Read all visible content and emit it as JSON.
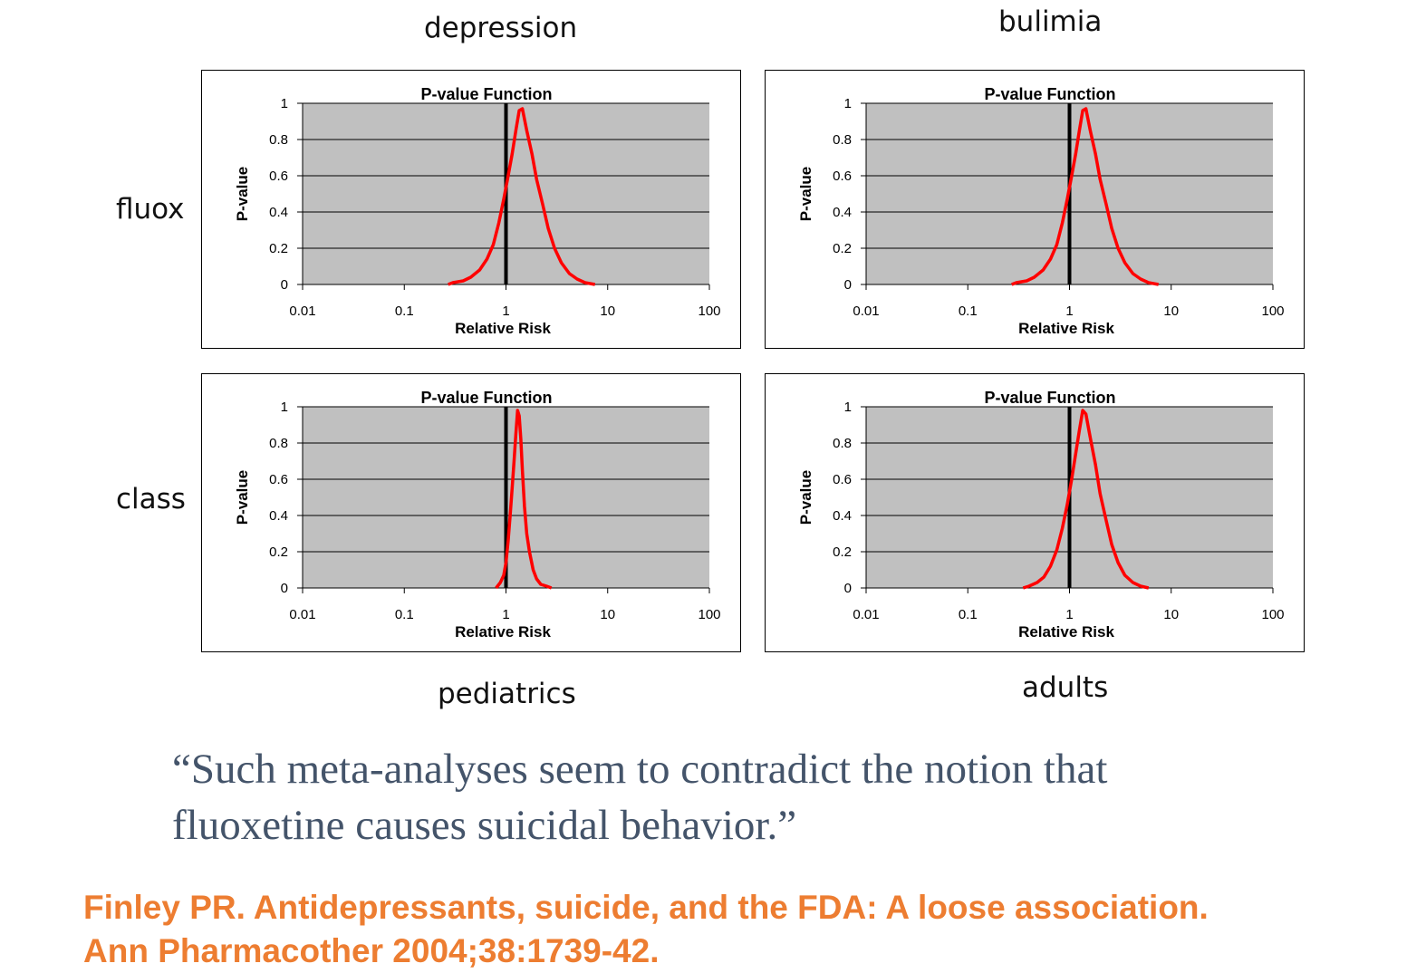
{
  "column_labels": [
    "depression",
    "bulimia"
  ],
  "row_labels": [
    "fluox",
    "class"
  ],
  "bottom_labels": [
    "pediatrics",
    "adults"
  ],
  "quote": "“Such meta-analyses seem to contradict the notion that fluoxetine causes suicidal behavior.”",
  "citation": {
    "line1": "Finley PR.  Antidepressants, suicide, and the FDA: A loose association.",
    "line2": "Ann Pharmacother 2004;38:1739-42."
  },
  "colors": {
    "plot_area": "#C0C0C0",
    "curve": "#FF0000",
    "reference_line": "#000000",
    "quote": "#44546A",
    "citation": "#ED7D31"
  },
  "chart_data": [
    {
      "type": "line",
      "title": "P-value Function",
      "xlabel": "Relative Risk",
      "ylabel": "P-value",
      "x_scale": "log",
      "xlim": [
        0.01,
        100
      ],
      "ylim": [
        0,
        1
      ],
      "x_ticks": [
        "0.01",
        "0.1",
        "1",
        "10",
        "100"
      ],
      "y_ticks": [
        "0",
        "0.2",
        "0.4",
        "0.6",
        "0.8",
        "1"
      ],
      "grid": true,
      "reference_line_x": 1,
      "series": [
        {
          "x": [
            0.27,
            0.3,
            0.38,
            0.45,
            0.55,
            0.65,
            0.75,
            0.85,
            0.95,
            1.05,
            1.15,
            1.25,
            1.35,
            1.45,
            1.6,
            1.8,
            2.0,
            2.3,
            2.6,
            3.0,
            3.5,
            4.2,
            5.0,
            6.0,
            7.5
          ],
          "y": [
            0.0,
            0.01,
            0.02,
            0.04,
            0.08,
            0.14,
            0.22,
            0.34,
            0.47,
            0.6,
            0.72,
            0.85,
            0.96,
            0.97,
            0.85,
            0.72,
            0.58,
            0.44,
            0.31,
            0.2,
            0.12,
            0.06,
            0.03,
            0.01,
            0.0
          ]
        }
      ]
    },
    {
      "type": "line",
      "title": "P-value Function",
      "xlabel": "Relative Risk",
      "ylabel": "P-value",
      "x_scale": "log",
      "xlim": [
        0.01,
        100
      ],
      "ylim": [
        0,
        1
      ],
      "x_ticks": [
        "0.01",
        "0.1",
        "1",
        "10",
        "100"
      ],
      "y_ticks": [
        "0",
        "0.2",
        "0.4",
        "0.6",
        "0.8",
        "1"
      ],
      "grid": true,
      "reference_line_x": 1,
      "series": [
        {
          "x": [
            0.27,
            0.3,
            0.38,
            0.45,
            0.55,
            0.65,
            0.75,
            0.85,
            0.95,
            1.05,
            1.15,
            1.25,
            1.35,
            1.45,
            1.6,
            1.8,
            2.0,
            2.3,
            2.6,
            3.0,
            3.5,
            4.2,
            5.0,
            6.0,
            7.5
          ],
          "y": [
            0.0,
            0.01,
            0.02,
            0.04,
            0.08,
            0.14,
            0.22,
            0.34,
            0.47,
            0.6,
            0.72,
            0.85,
            0.96,
            0.97,
            0.85,
            0.72,
            0.58,
            0.44,
            0.31,
            0.2,
            0.12,
            0.06,
            0.03,
            0.01,
            0.0
          ]
        }
      ]
    },
    {
      "type": "line",
      "title": "P-value Function",
      "xlabel": "Relative Risk",
      "ylabel": "P-value",
      "x_scale": "log",
      "xlim": [
        0.01,
        100
      ],
      "ylim": [
        0,
        1
      ],
      "x_ticks": [
        "0.01",
        "0.1",
        "1",
        "10",
        "100"
      ],
      "y_ticks": [
        "0",
        "0.2",
        "0.4",
        "0.6",
        "0.8",
        "1"
      ],
      "grid": true,
      "reference_line_x": 1,
      "series": [
        {
          "x": [
            0.8,
            0.88,
            0.95,
            1.0,
            1.05,
            1.1,
            1.15,
            1.2,
            1.25,
            1.3,
            1.35,
            1.4,
            1.45,
            1.52,
            1.6,
            1.7,
            1.85,
            2.0,
            2.2,
            2.5,
            2.8
          ],
          "y": [
            0.0,
            0.03,
            0.07,
            0.14,
            0.26,
            0.4,
            0.55,
            0.7,
            0.85,
            0.98,
            0.95,
            0.82,
            0.65,
            0.45,
            0.3,
            0.2,
            0.1,
            0.05,
            0.02,
            0.01,
            0.0
          ]
        }
      ]
    },
    {
      "type": "line",
      "title": "P-value Function",
      "xlabel": "Relative Risk",
      "ylabel": "P-value",
      "x_scale": "log",
      "xlim": [
        0.01,
        100
      ],
      "ylim": [
        0,
        1
      ],
      "x_ticks": [
        "0.01",
        "0.1",
        "1",
        "10",
        "100"
      ],
      "y_ticks": [
        "0",
        "0.2",
        "0.4",
        "0.6",
        "0.8",
        "1"
      ],
      "grid": true,
      "reference_line_x": 1,
      "series": [
        {
          "x": [
            0.35,
            0.4,
            0.48,
            0.56,
            0.65,
            0.75,
            0.85,
            0.95,
            1.05,
            1.15,
            1.25,
            1.35,
            1.45,
            1.6,
            1.8,
            2.0,
            2.3,
            2.6,
            3.0,
            3.5,
            4.2,
            5.0,
            6.0
          ],
          "y": [
            0.0,
            0.01,
            0.03,
            0.06,
            0.12,
            0.21,
            0.33,
            0.46,
            0.6,
            0.74,
            0.87,
            0.98,
            0.96,
            0.83,
            0.68,
            0.52,
            0.37,
            0.24,
            0.14,
            0.07,
            0.03,
            0.01,
            0.0
          ]
        }
      ]
    }
  ]
}
